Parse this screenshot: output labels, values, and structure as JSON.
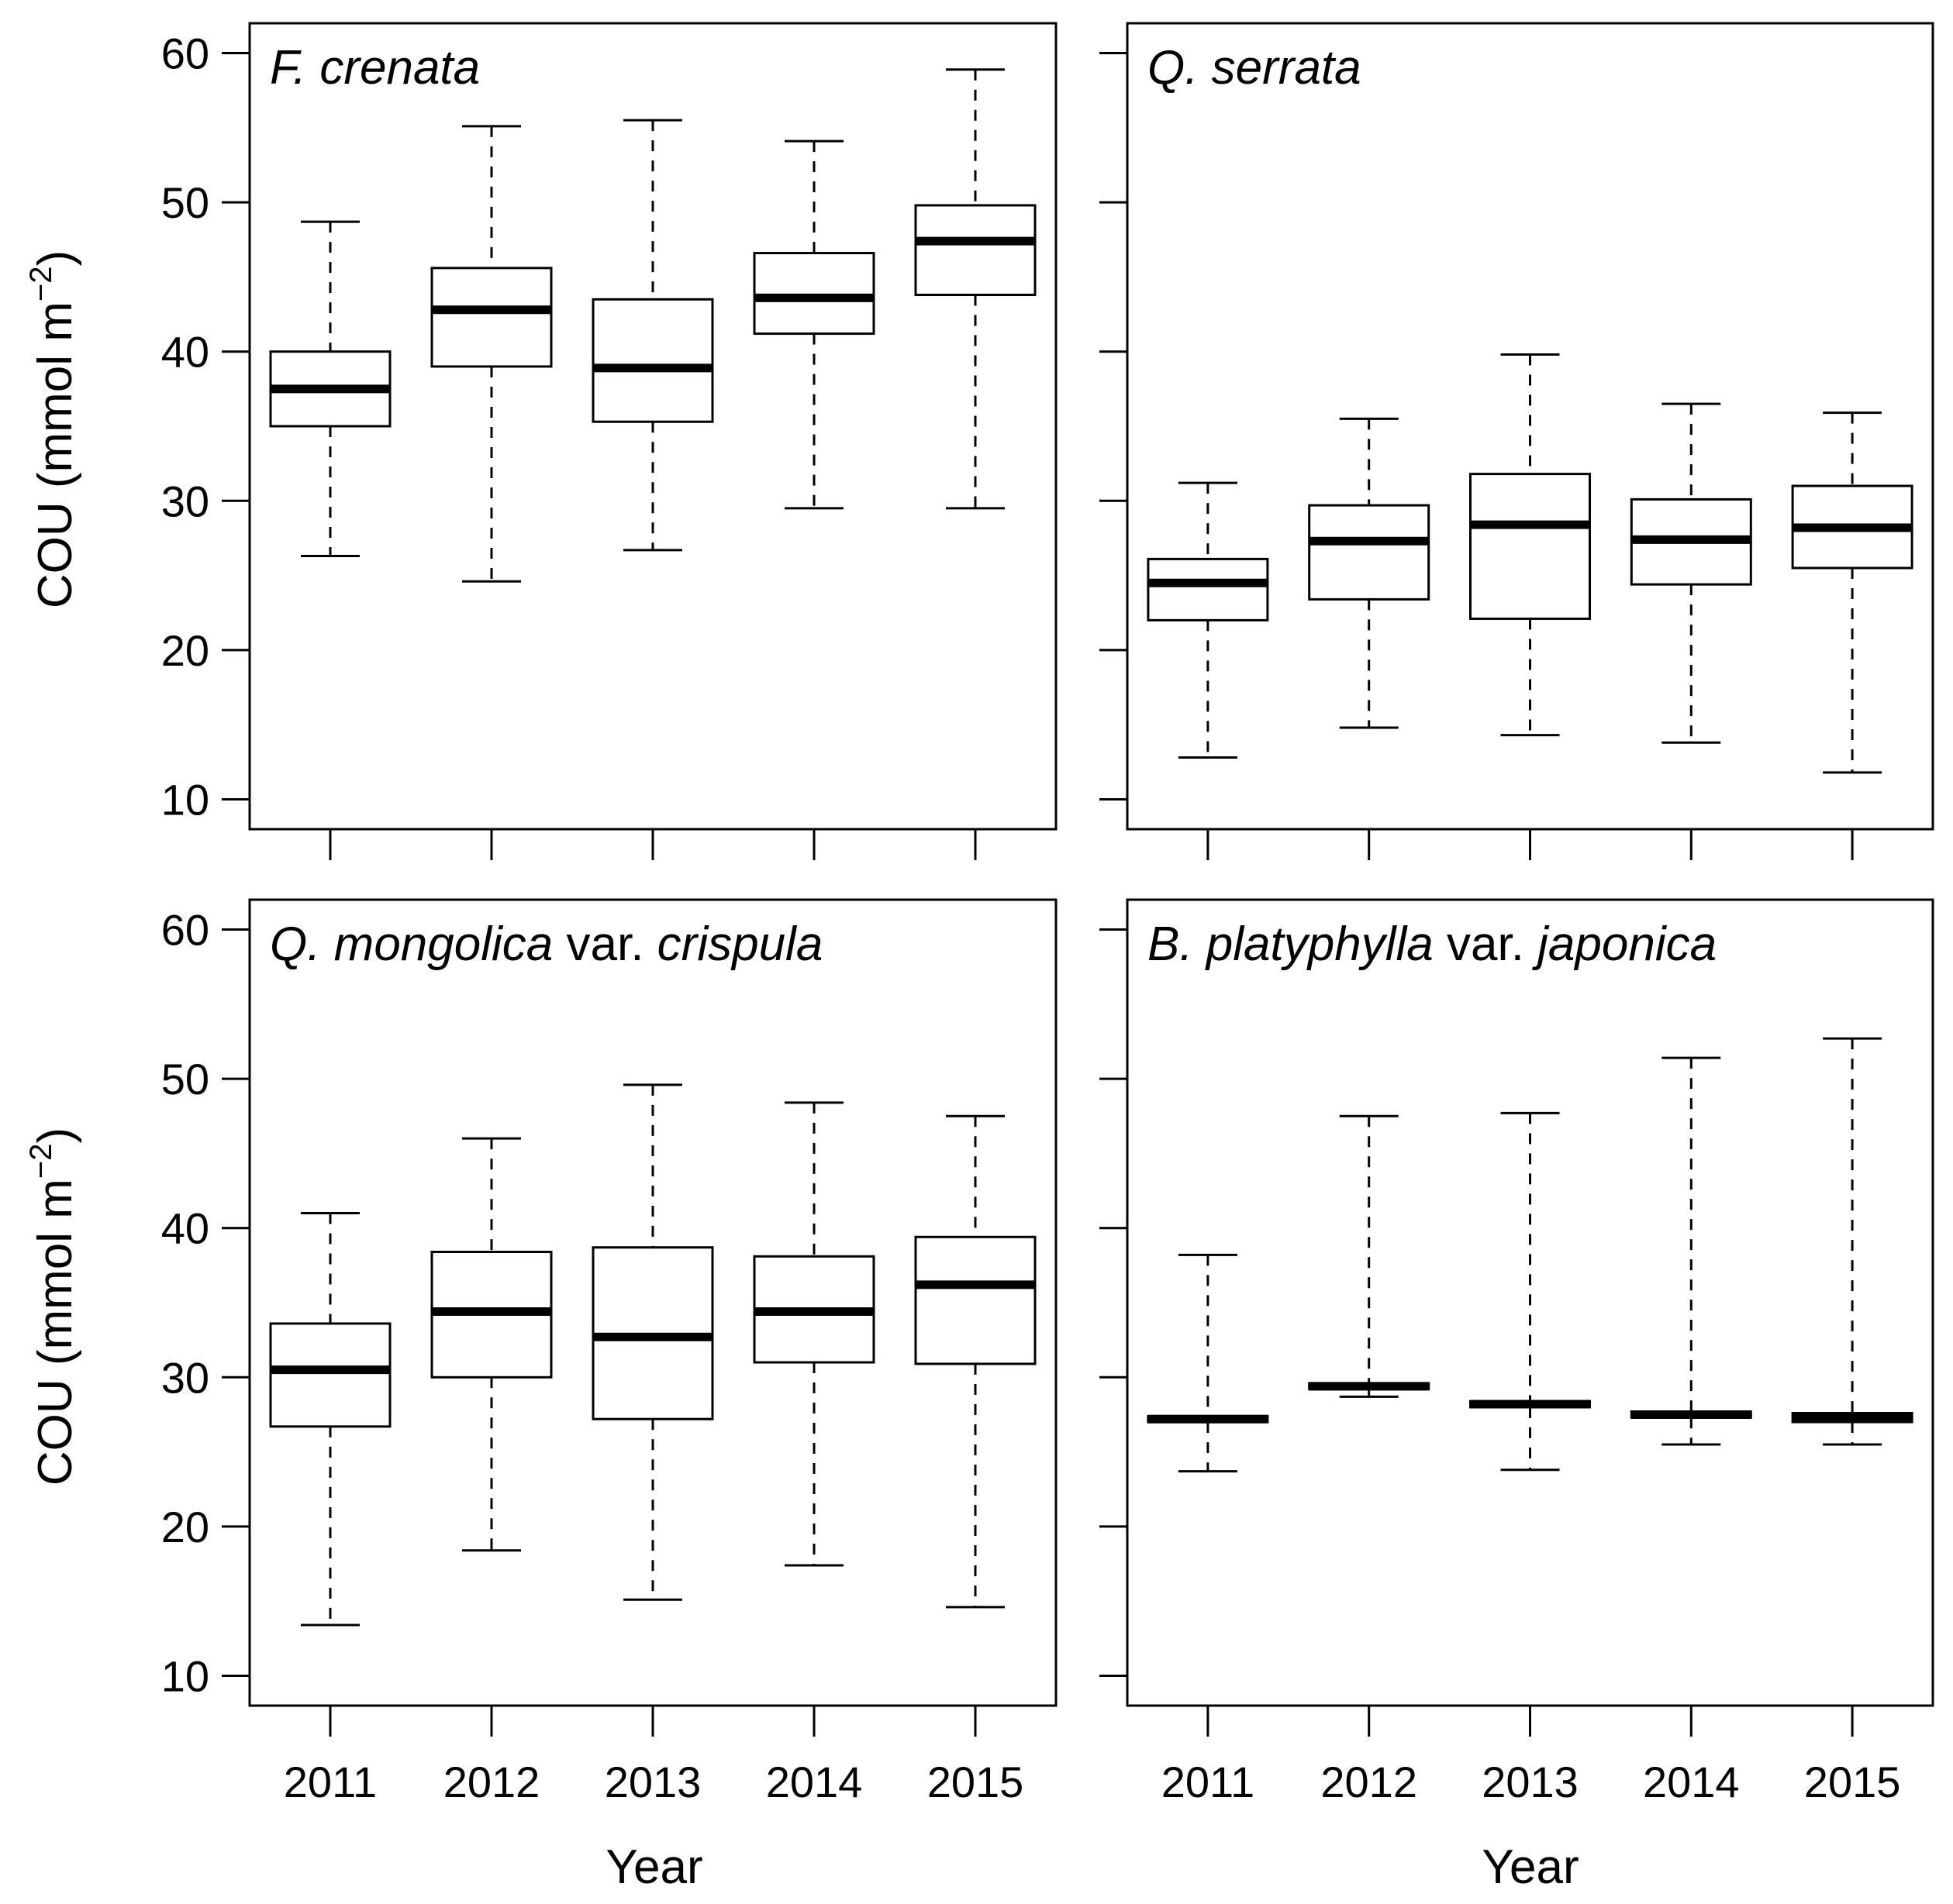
{
  "figure": {
    "ylabel": "COU (mmol m",
    "ylabel_sup": "−2",
    "ylabel_close": ")",
    "xlabel": "Year",
    "categories": [
      "2011",
      "2012",
      "2013",
      "2014",
      "2015"
    ],
    "y_ticks": [
      "10",
      "20",
      "30",
      "40",
      "50",
      "60"
    ]
  },
  "chart_data": [
    {
      "type": "box",
      "title_parts": [
        {
          "text": "F. crenata",
          "italic": true
        }
      ],
      "categories": [
        "2011",
        "2012",
        "2013",
        "2014",
        "2015"
      ],
      "ylim": [
        8,
        62
      ],
      "xlabel": "",
      "ylabel": "COU (mmol m−2)",
      "series": [
        {
          "min": 26.3,
          "q1": 35.0,
          "median": 37.5,
          "q3": 40.0,
          "max": 48.7
        },
        {
          "min": 24.6,
          "q1": 39.0,
          "median": 42.8,
          "q3": 45.6,
          "max": 55.1
        },
        {
          "min": 26.7,
          "q1": 35.3,
          "median": 38.9,
          "q3": 43.5,
          "max": 55.5
        },
        {
          "min": 29.5,
          "q1": 41.2,
          "median": 43.6,
          "q3": 46.6,
          "max": 54.1
        },
        {
          "min": 29.5,
          "q1": 43.8,
          "median": 47.4,
          "q3": 49.8,
          "max": 58.9
        }
      ]
    },
    {
      "type": "box",
      "title_parts": [
        {
          "text": "Q. serrata",
          "italic": true
        }
      ],
      "categories": [
        "2011",
        "2012",
        "2013",
        "2014",
        "2015"
      ],
      "ylim": [
        8,
        62
      ],
      "xlabel": "",
      "ylabel": "",
      "series": [
        {
          "min": 12.8,
          "q1": 22.0,
          "median": 24.5,
          "q3": 26.1,
          "max": 31.2
        },
        {
          "min": 14.8,
          "q1": 23.4,
          "median": 27.3,
          "q3": 29.7,
          "max": 35.5
        },
        {
          "min": 14.3,
          "q1": 22.1,
          "median": 28.4,
          "q3": 31.8,
          "max": 39.8
        },
        {
          "min": 13.8,
          "q1": 24.4,
          "median": 27.4,
          "q3": 30.1,
          "max": 36.5
        },
        {
          "min": 11.8,
          "q1": 25.5,
          "median": 28.2,
          "q3": 31.0,
          "max": 35.9
        }
      ]
    },
    {
      "type": "box",
      "title_parts": [
        {
          "text": "Q. mongolica",
          "italic": true
        },
        {
          "text": " var. ",
          "italic": false
        },
        {
          "text": "crispula",
          "italic": true
        }
      ],
      "categories": [
        "2011",
        "2012",
        "2013",
        "2014",
        "2015"
      ],
      "ylim": [
        8,
        62
      ],
      "xlabel": "Year",
      "ylabel": "COU (mmol m−2)",
      "series": [
        {
          "min": 13.4,
          "q1": 26.7,
          "median": 30.5,
          "q3": 33.6,
          "max": 41.0
        },
        {
          "min": 18.4,
          "q1": 30.0,
          "median": 34.4,
          "q3": 38.4,
          "max": 46.0
        },
        {
          "min": 15.1,
          "q1": 27.2,
          "median": 32.7,
          "q3": 38.7,
          "max": 49.6
        },
        {
          "min": 17.4,
          "q1": 31.0,
          "median": 34.4,
          "q3": 38.1,
          "max": 48.4
        },
        {
          "min": 14.6,
          "q1": 30.9,
          "median": 36.2,
          "q3": 39.4,
          "max": 47.5
        }
      ]
    },
    {
      "type": "box",
      "title_parts": [
        {
          "text": "B. platyphylla",
          "italic": true
        },
        {
          "text": " var. ",
          "italic": false
        },
        {
          "text": "japonica",
          "italic": true
        }
      ],
      "categories": [
        "2011",
        "2012",
        "2013",
        "2014",
        "2015"
      ],
      "ylim": [
        8,
        62
      ],
      "xlabel": "Year",
      "ylabel": "",
      "series": [
        {
          "min": 23.7,
          "q1": 27.0,
          "median": 27.2,
          "q3": 27.4,
          "max": 38.2
        },
        {
          "min": 28.7,
          "q1": 29.2,
          "median": 29.4,
          "q3": 29.6,
          "max": 47.5
        },
        {
          "min": 23.8,
          "q1": 28.0,
          "median": 28.2,
          "q3": 28.4,
          "max": 47.7
        },
        {
          "min": 25.5,
          "q1": 27.3,
          "median": 27.5,
          "q3": 27.7,
          "max": 51.4
        },
        {
          "min": 25.5,
          "q1": 27.0,
          "median": 27.3,
          "q3": 27.6,
          "max": 52.7
        }
      ]
    }
  ]
}
